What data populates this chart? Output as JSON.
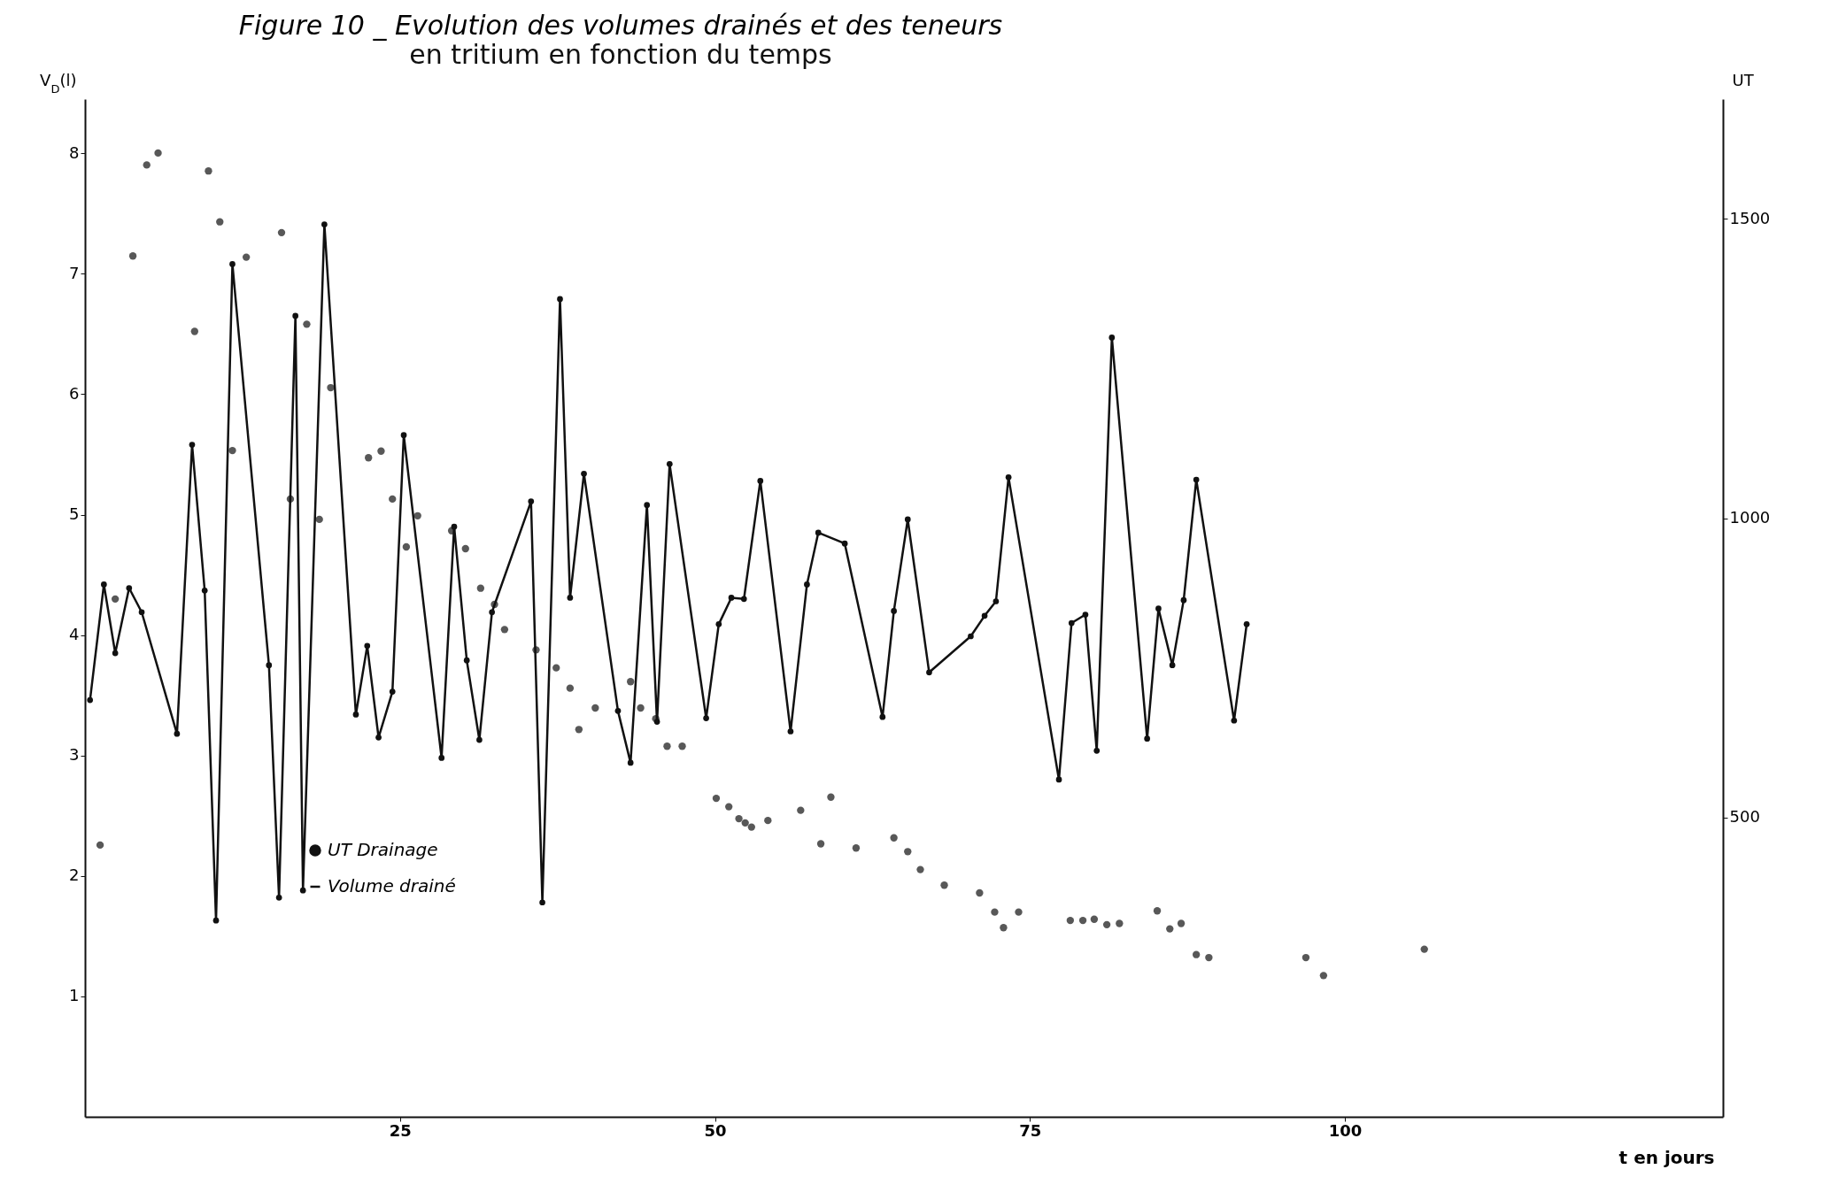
{
  "chart_data": {
    "type": "line",
    "title": "Figure 10 _ Evolution des volumes drainés et des teneurs",
    "subtitle": "en tritium en fonction du temps",
    "xlabel": "t en jours",
    "ylabel": "V$_{D}$(l)",
    "y2label": "UT",
    "xlim": [
      0,
      130
    ],
    "xticks": [
      25,
      50,
      75,
      100
    ],
    "ylim": [
      0,
      8.45
    ],
    "yticks": [
      1,
      2,
      3,
      4,
      5,
      6,
      7,
      8
    ],
    "y2lim": [
      0,
      1700
    ],
    "y2ticks": [
      500,
      1000,
      1500
    ],
    "grid": false,
    "legend": "bottom left",
    "marker": "circle",
    "series": [
      {
        "name": "UT Drainage",
        "type": "scatter",
        "axis": "y2",
        "color": "#111111",
        "x": [
          1.2,
          2.4,
          3.8,
          4.9,
          5.8,
          8.7,
          9.8,
          10.7,
          11.7,
          12.8,
          15.6,
          16.3,
          17.6,
          18.6,
          19.5,
          22.5,
          23.5,
          24.4,
          25.5,
          26.4,
          29.1,
          30.2,
          31.4,
          32.5,
          33.3,
          35.8,
          37.4,
          38.5,
          39.2,
          40.5,
          43.3,
          44.1,
          45.3,
          46.2,
          47.4,
          50.1,
          51.1,
          51.9,
          52.4,
          52.9,
          54.2,
          56.8,
          58.4,
          59.2,
          61.2,
          64.2,
          65.3,
          66.3,
          68.2,
          71.0,
          72.2,
          72.9,
          74.1,
          78.2,
          79.2,
          80.1,
          81.1,
          82.1,
          85.1,
          86.1,
          87.0,
          88.2,
          89.2,
          96.9,
          98.3,
          106.3
        ],
        "values": [
          454,
          865,
          1438,
          1590,
          1610,
          1312,
          1580,
          1495,
          1113,
          1436,
          1477,
          1032,
          1324,
          998,
          1218,
          1101,
          1112,
          1032,
          952,
          1004,
          979,
          949,
          883,
          856,
          814,
          780,
          750,
          716,
          647,
          683,
          727,
          683,
          665,
          619,
          619,
          532,
          518,
          498,
          491,
          484,
          495,
          512,
          456,
          534,
          449,
          466,
          443,
          413,
          387,
          374,
          342,
          316,
          342,
          328,
          328,
          330,
          321,
          323,
          344,
          314,
          323,
          271,
          266,
          266,
          236,
          280
        ]
      },
      {
        "name": "Volume drainé",
        "type": "line",
        "color": "#111111",
        "x": [
          0.4,
          1.5,
          2.4,
          3.5,
          4.5,
          7.3,
          8.5,
          9.5,
          10.4,
          11.7,
          14.6,
          15.4,
          16.7,
          17.3,
          19.0,
          21.5,
          22.4,
          23.3,
          24.4,
          25.3,
          28.3,
          29.3,
          30.3,
          31.3,
          32.3,
          35.4,
          36.3,
          37.7,
          38.5,
          39.6,
          42.3,
          43.3,
          44.6,
          45.4,
          46.4,
          49.3,
          50.3,
          51.3,
          52.3,
          53.6,
          56.0,
          57.3,
          58.2,
          60.3,
          63.3,
          64.2,
          65.3,
          67.0,
          70.3,
          71.4,
          72.3,
          73.3,
          77.3,
          78.3,
          79.4,
          80.3,
          81.5,
          84.3,
          85.2,
          86.3,
          87.2,
          88.2,
          91.2,
          92.2
        ],
        "values": [
          3.46,
          4.42,
          3.85,
          4.39,
          4.19,
          3.18,
          5.58,
          4.37,
          1.63,
          7.08,
          3.75,
          1.82,
          6.65,
          1.88,
          7.41,
          3.34,
          3.91,
          3.15,
          3.53,
          5.66,
          2.98,
          4.9,
          3.79,
          3.13,
          4.19,
          5.11,
          1.78,
          6.79,
          4.31,
          5.34,
          3.37,
          2.94,
          5.08,
          3.28,
          5.42,
          3.31,
          4.09,
          4.31,
          4.3,
          5.28,
          3.2,
          4.42,
          4.85,
          4.76,
          3.32,
          4.2,
          4.96,
          3.69,
          3.99,
          4.16,
          4.28,
          5.31,
          2.8,
          4.1,
          4.17,
          3.04,
          6.47,
          3.14,
          4.22,
          3.75,
          4.29,
          5.29,
          3.29,
          4.09
        ]
      }
    ]
  }
}
